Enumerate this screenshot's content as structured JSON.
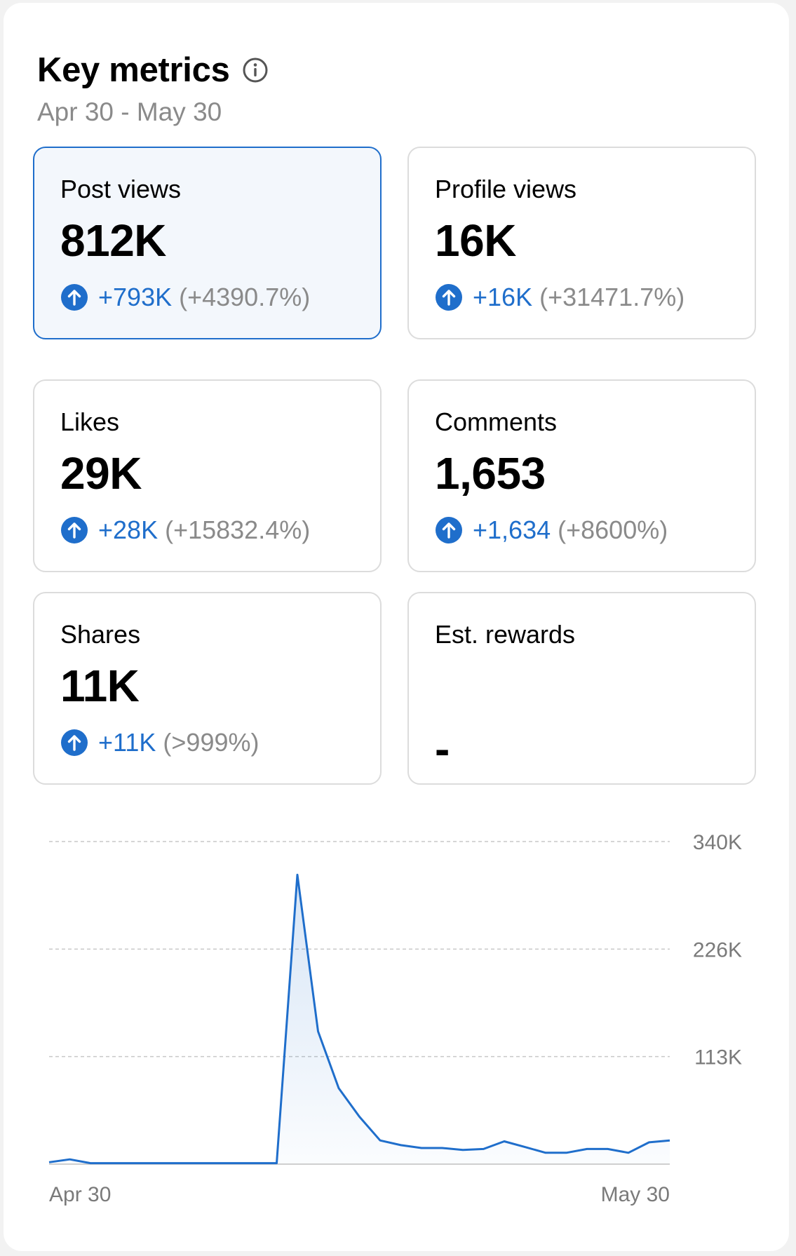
{
  "header": {
    "title": "Key metrics",
    "date_range": "Apr 30 - May 30"
  },
  "icons": {
    "info": "info-icon",
    "up": "arrow-up-circle-icon"
  },
  "colors": {
    "accent": "#1f6ecb",
    "muted": "#8a8a8a",
    "selected_bg": "#f3f7fc"
  },
  "metrics": [
    {
      "label": "Post views",
      "value": "812K",
      "delta": "+793K",
      "pct": "(+4390.7%)",
      "selected": true
    },
    {
      "label": "Profile views",
      "value": "16K",
      "delta": "+16K",
      "pct": "(+31471.7%)",
      "selected": false
    },
    {
      "label": "Likes",
      "value": "29K",
      "delta": "+28K",
      "pct": "(+15832.4%)",
      "selected": false
    },
    {
      "label": "Comments",
      "value": "1,653",
      "delta": "+1,634",
      "pct": "(+8600%)",
      "selected": false
    },
    {
      "label": "Shares",
      "value": "11K",
      "delta": "+11K",
      "pct": "(>999%)",
      "selected": false
    },
    {
      "label": "Est. rewards",
      "value": "-",
      "selected": false
    }
  ],
  "chart_data": {
    "type": "area",
    "series": [
      {
        "values": [
          2000,
          5000,
          1000,
          1000,
          1000,
          1000,
          1000,
          1000,
          1000,
          1000,
          1000,
          1000,
          305000,
          140000,
          80000,
          50000,
          25000,
          20000,
          17000,
          17000,
          15000,
          16000,
          24000,
          18000,
          12000,
          12000,
          16000,
          16000,
          12000,
          23000,
          25000
        ]
      }
    ],
    "x_tick_labels": [
      "Apr 30",
      "May 30"
    ],
    "y_ticks": [
      "340K",
      "226K",
      "113K"
    ],
    "ylim": [
      0,
      340000
    ],
    "grid": true
  }
}
